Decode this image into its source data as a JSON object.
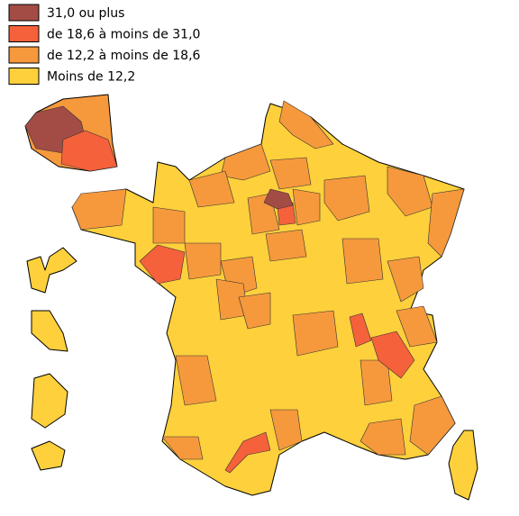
{
  "legend": [
    {
      "label": "31,0 ou plus",
      "color": "#a34c46"
    },
    {
      "label": "de 18,6 à moins de 31,0",
      "color": "#f5613b"
    },
    {
      "label": "de 12,2 à moins de 18,6",
      "color": "#f6993c"
    },
    {
      "label": "Moins de 12,2",
      "color": "#fdd03c"
    }
  ]
}
